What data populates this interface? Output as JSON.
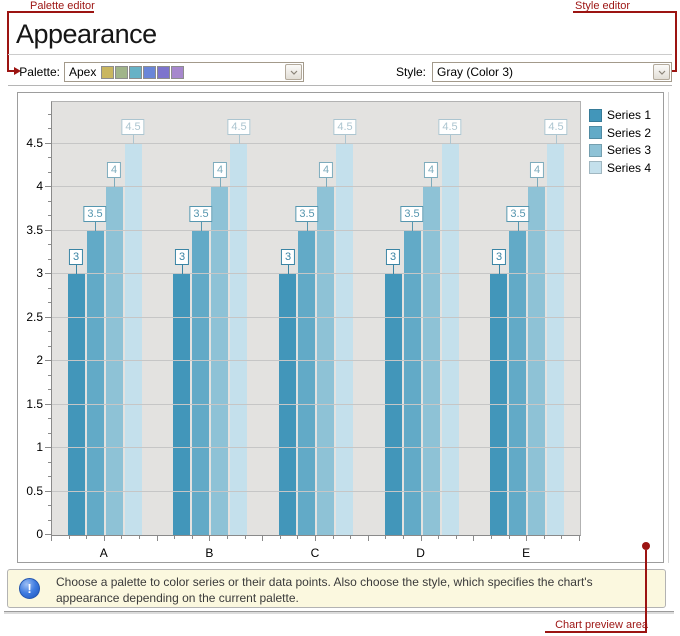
{
  "annotations": {
    "palette_editor": "Palette editor",
    "style_editor": "Style editor",
    "chart_preview": "Chart preview area"
  },
  "header": {
    "title": "Appearance"
  },
  "toolbar": {
    "palette_label": "Palette:",
    "palette_value": "Apex",
    "palette_swatches": [
      "#C9B660",
      "#A0B489",
      "#67B2C6",
      "#6A86D8",
      "#7D74CD",
      "#A687CD"
    ],
    "style_label": "Style:",
    "style_value": "Gray (Color 3)"
  },
  "chart_data": {
    "type": "bar",
    "categories": [
      "A",
      "B",
      "C",
      "D",
      "E"
    ],
    "series": [
      {
        "name": "Series 1",
        "color": "#4296BA",
        "values": [
          3,
          3,
          3,
          3,
          3
        ]
      },
      {
        "name": "Series 2",
        "color": "#62AAC7",
        "values": [
          3.5,
          3.5,
          3.5,
          3.5,
          3.5
        ]
      },
      {
        "name": "Series 3",
        "color": "#8EC2D6",
        "values": [
          4,
          4,
          4,
          4,
          4
        ]
      },
      {
        "name": "Series 4",
        "color": "#C4E0EC",
        "values": [
          4.5,
          4.5,
          4.5,
          4.5,
          4.5
        ]
      }
    ],
    "ylim": [
      0,
      5
    ],
    "ytick_step": 0.5,
    "ytick_labels": [
      "0",
      "0.5",
      "1",
      "1.5",
      "2",
      "2.5",
      "3",
      "3.5",
      "4",
      "4.5"
    ],
    "grid": true,
    "point_labels": true,
    "legend_position": "top-right"
  },
  "info": {
    "text": "Choose a palette to color series or their data points. Also choose the style, which specifies the chart's appearance depending on the current palette."
  }
}
